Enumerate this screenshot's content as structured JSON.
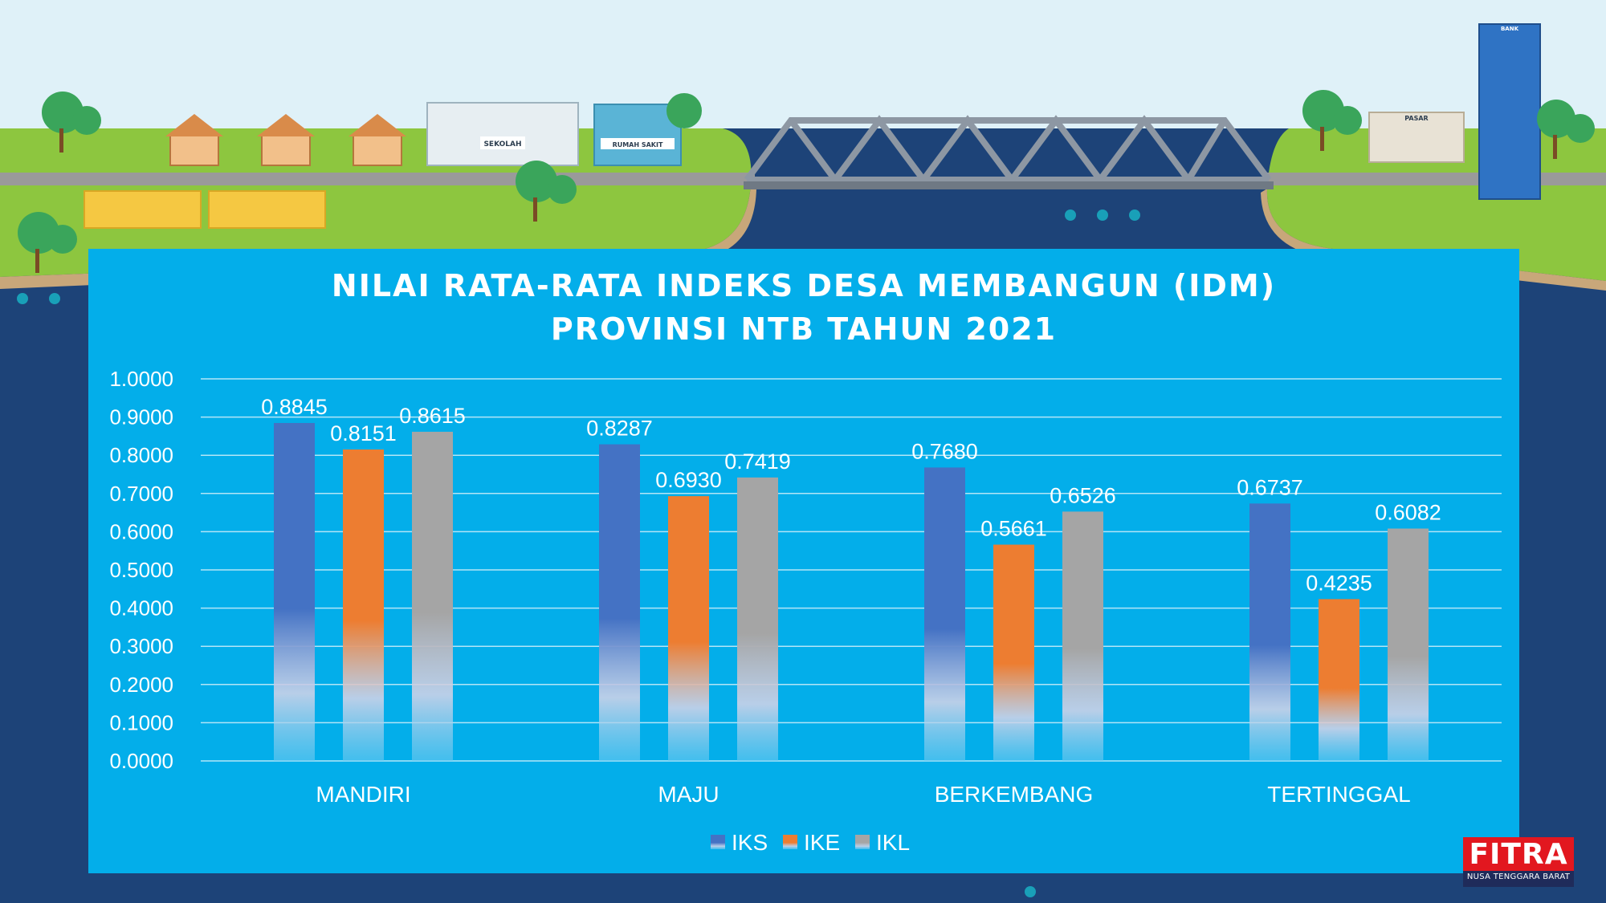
{
  "scene": {
    "signs": {
      "school": "SEKOLAH",
      "hospital": "RUMAH SAKIT",
      "bank": "BANK",
      "market": "PASAR"
    }
  },
  "logo": {
    "name": "FITRA",
    "subtitle": "NUSA TENGGARA BARAT"
  },
  "chart_data": {
    "type": "bar",
    "title": "NILAI RATA-RATA INDEKS DESA MEMBANGUN (IDM)",
    "subtitle": "PROVINSI NTB TAHUN 2021",
    "xlabel": "",
    "ylabel": "",
    "categories": [
      "MANDIRI",
      "MAJU",
      "BERKEMBANG",
      "TERTINGGAL"
    ],
    "series": [
      {
        "name": "IKS",
        "color": "#4472c4",
        "values": [
          0.8845,
          0.8287,
          0.768,
          0.6737
        ],
        "labels": [
          "0.8845",
          "0.8287",
          "0.7680",
          "0.6737"
        ]
      },
      {
        "name": "IKE",
        "color": "#ed7d31",
        "values": [
          0.8151,
          0.693,
          0.5661,
          0.4235
        ],
        "labels": [
          "0.8151",
          "0.6930",
          "0.5661",
          "0.4235"
        ]
      },
      {
        "name": "IKL",
        "color": "#a5a5a5",
        "values": [
          0.8615,
          0.7419,
          0.6526,
          0.6082
        ],
        "labels": [
          "0.8615",
          "0.7419",
          "0.6526",
          "0.6082"
        ]
      }
    ],
    "ylim": [
      0,
      1
    ],
    "yticks": [
      "0.0000",
      "0.1000",
      "0.2000",
      "0.3000",
      "0.4000",
      "0.5000",
      "0.6000",
      "0.7000",
      "0.8000",
      "0.9000",
      "1.0000"
    ],
    "grid": true,
    "legend": "bottom-center"
  }
}
